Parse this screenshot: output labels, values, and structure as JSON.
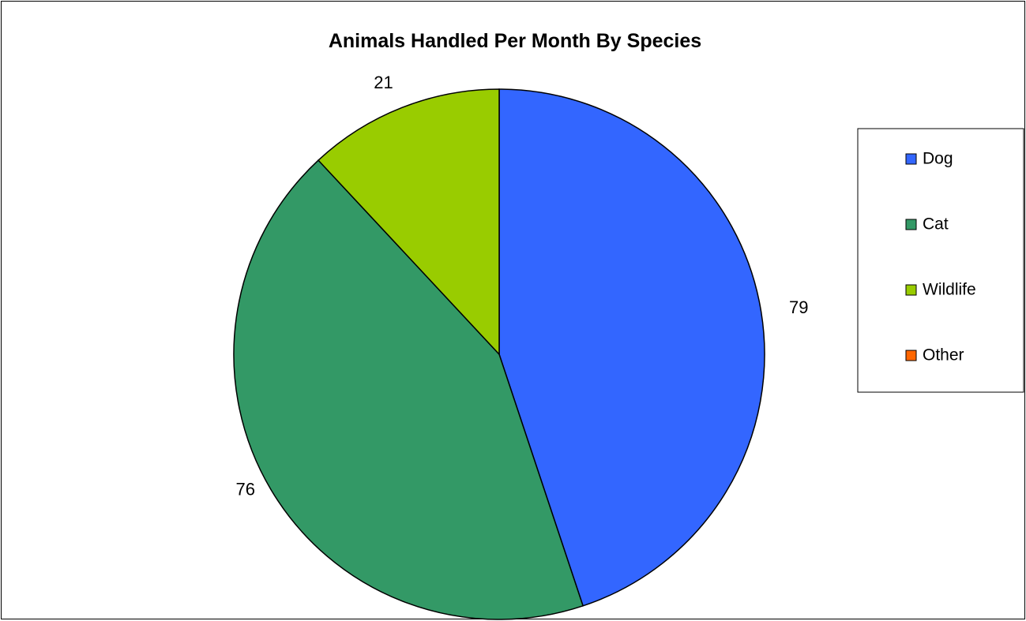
{
  "chart_data": {
    "type": "pie",
    "title": "Animals Handled Per Month By Species",
    "categories": [
      "Dog",
      "Cat",
      "Wildlife",
      "Other"
    ],
    "values": [
      79,
      76,
      21,
      0
    ],
    "colors": [
      "#3366FF",
      "#339966",
      "#99CC00",
      "#FF6600"
    ],
    "data_labels": [
      "79",
      "76",
      "21",
      ""
    ],
    "legend_position": "right",
    "start_angle": "12 o'clock",
    "direction": "clockwise"
  }
}
